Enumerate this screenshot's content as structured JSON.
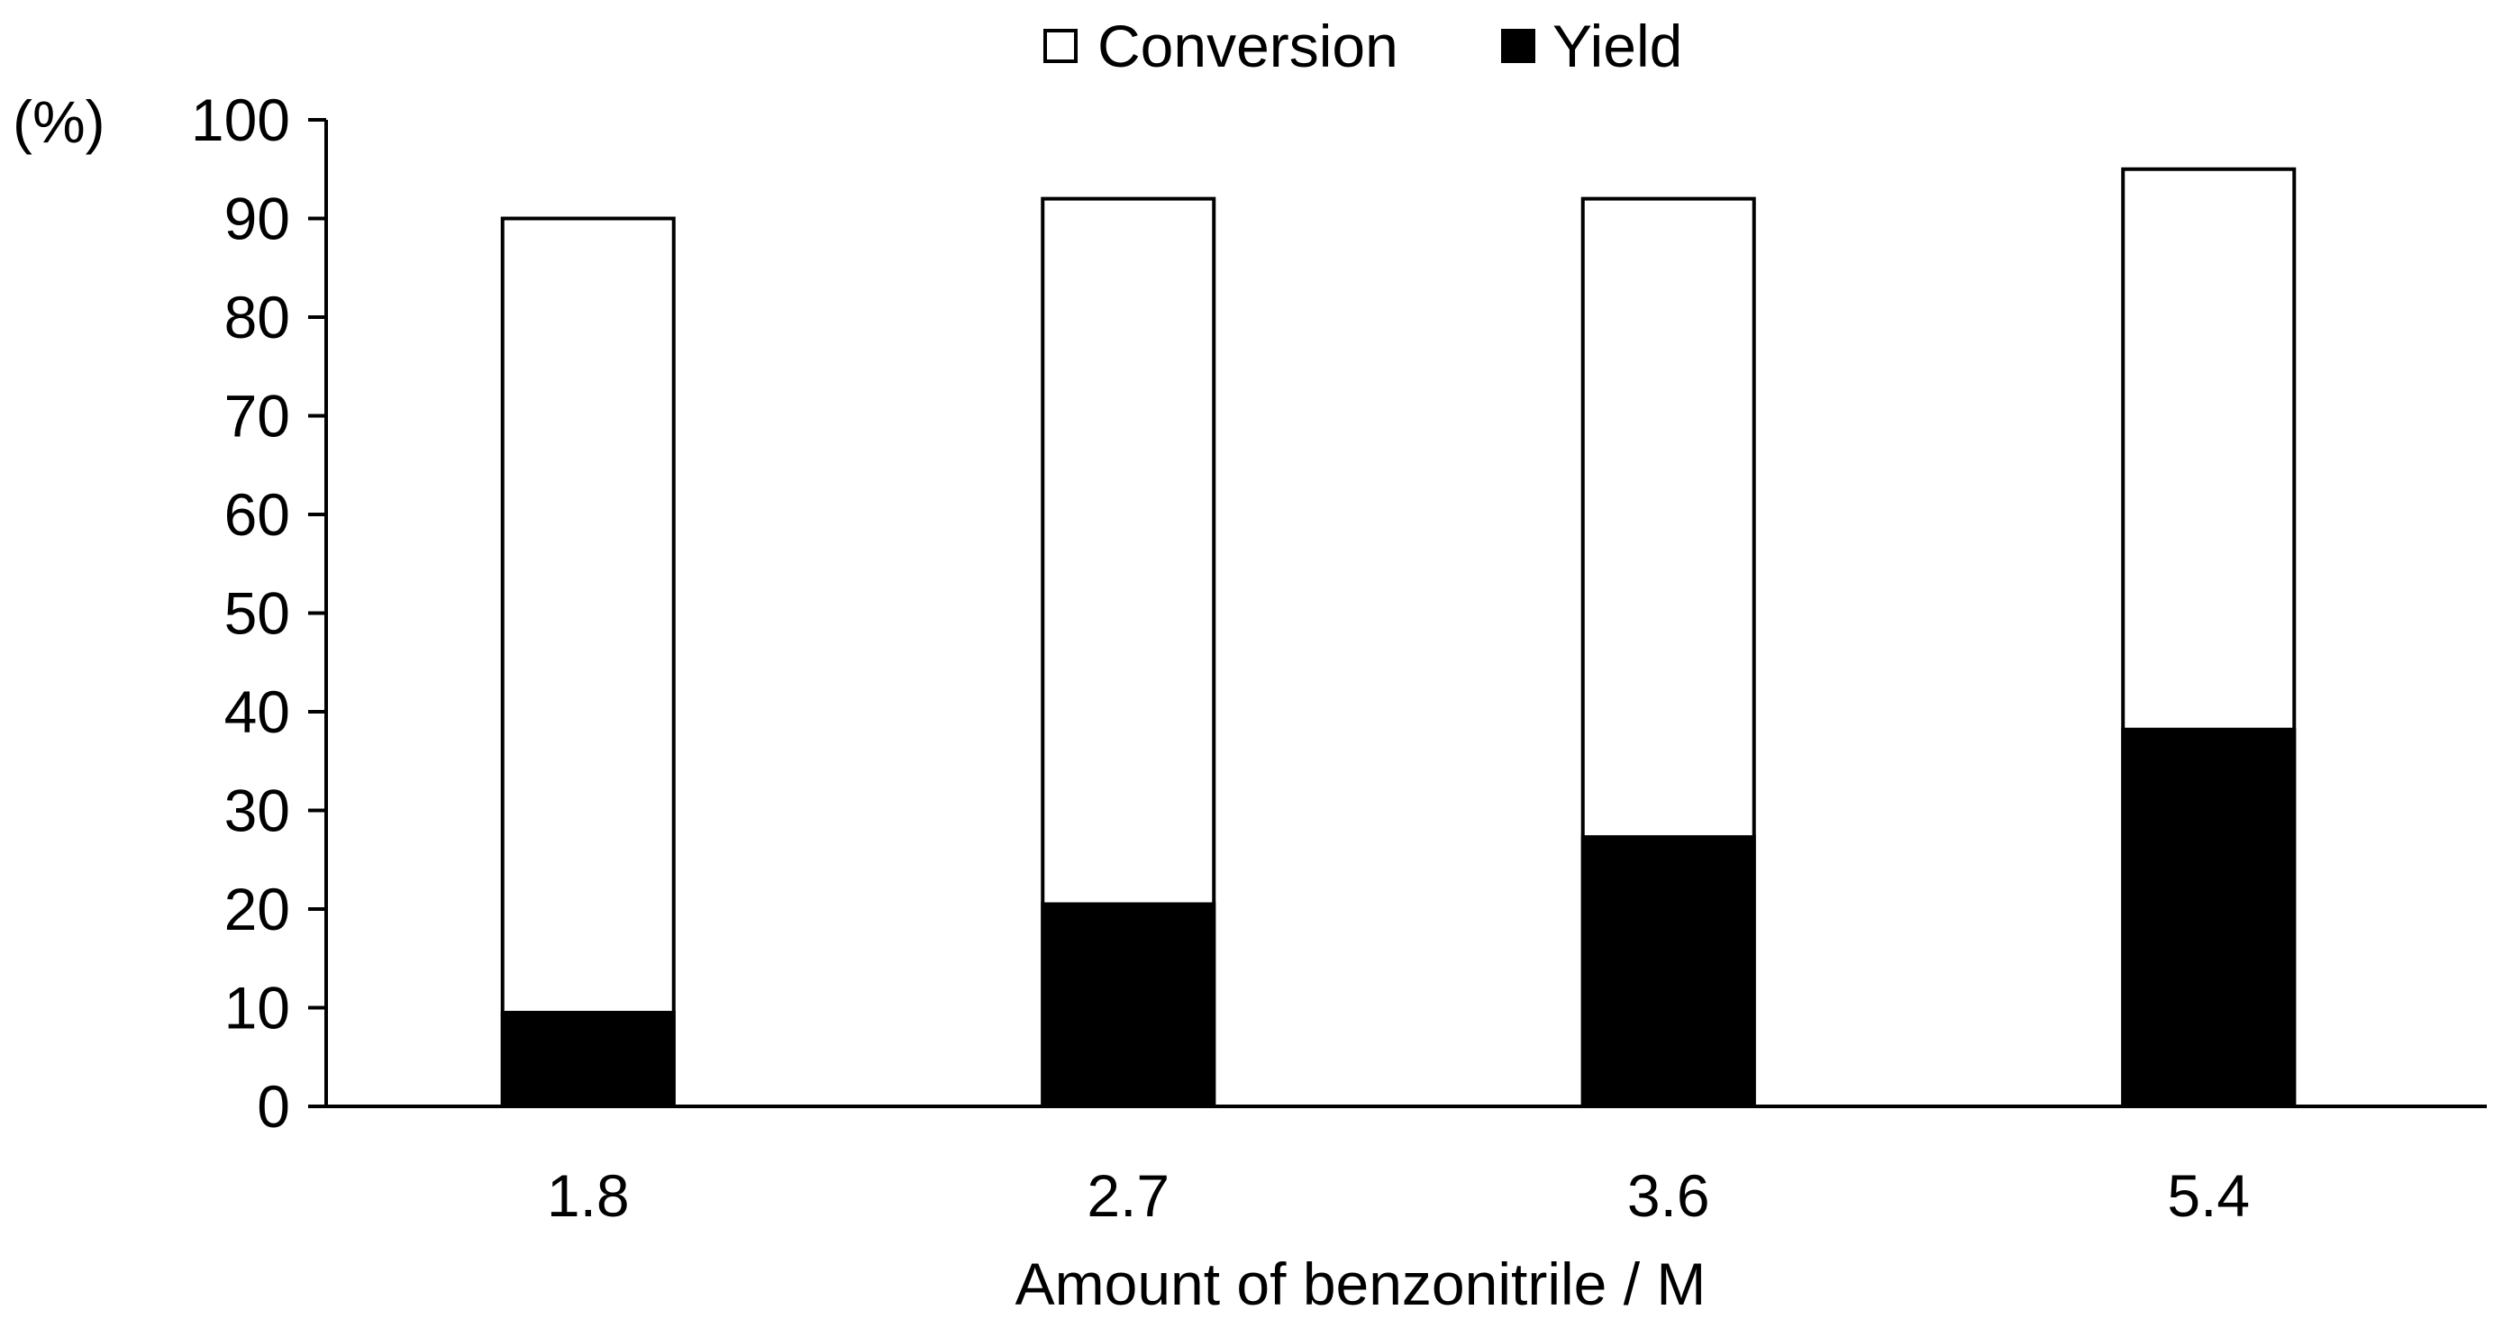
{
  "chart_data": {
    "type": "bar",
    "title": "",
    "xlabel": "Amount of benzonitrile / M",
    "ylabel": "(%)",
    "categories": [
      "1.8",
      "2.7",
      "3.6",
      "5.4"
    ],
    "series": [
      {
        "name": "Conversion",
        "values": [
          90,
          92,
          92,
          95
        ],
        "color": "#ffffff"
      },
      {
        "name": "Yield",
        "values": [
          9.5,
          20.5,
          27.3,
          38.2
        ],
        "color": "#000000"
      }
    ],
    "overlap": true,
    "ylim": [
      0,
      100
    ],
    "yticks": [
      0,
      10,
      20,
      30,
      40,
      50,
      60,
      70,
      80,
      90,
      100
    ],
    "grid": false,
    "legend_position": "top-center"
  }
}
